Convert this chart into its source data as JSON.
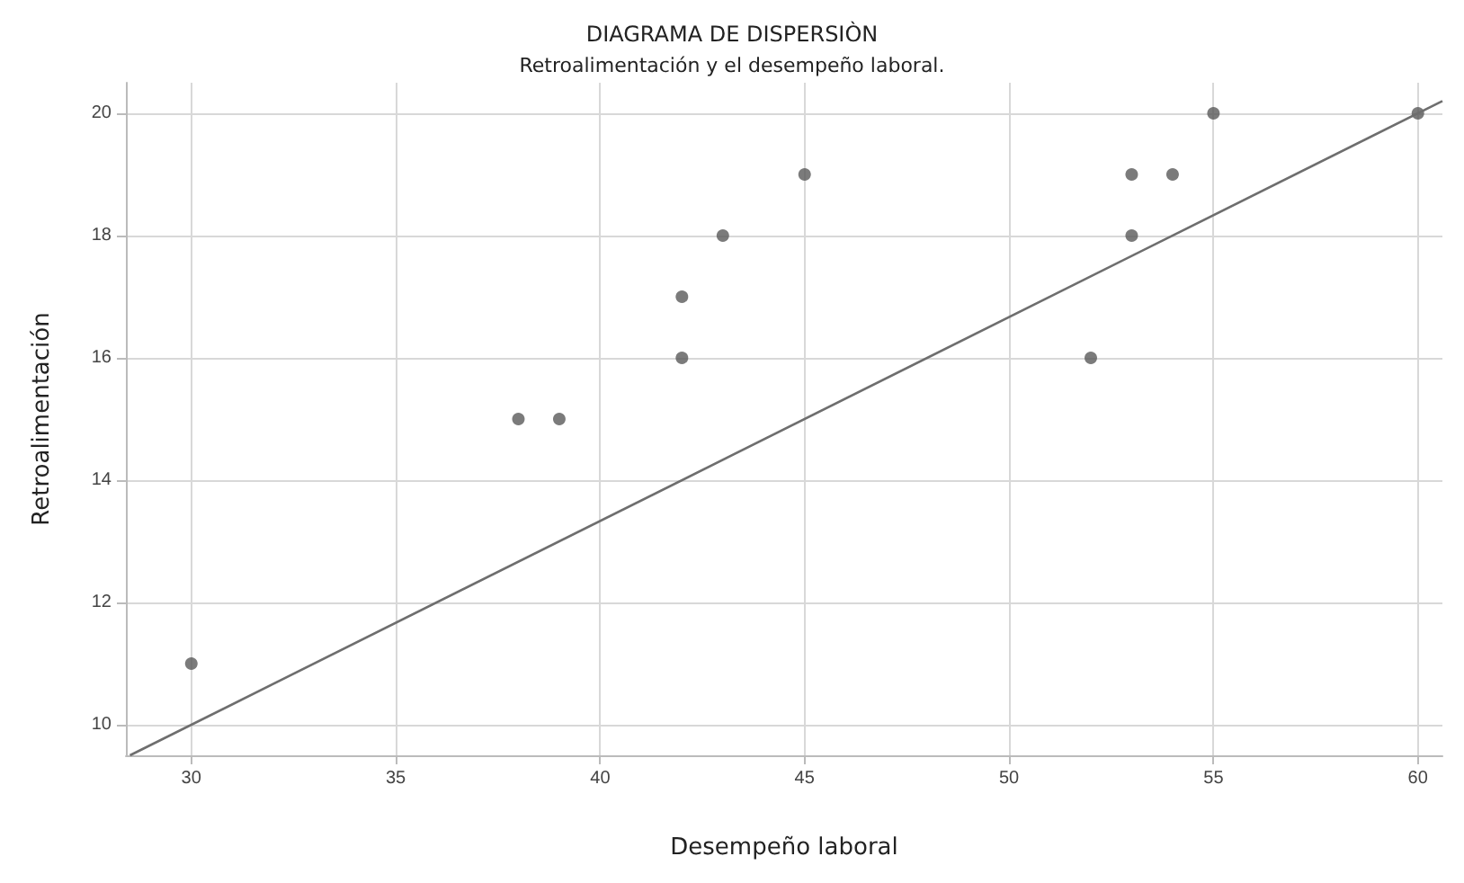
{
  "chart_data": {
    "type": "scatter",
    "title": "DIAGRAMA DE DISPERSIÒN",
    "subtitle": "Retroalimentación y el desempeño laboral.",
    "xlabel": "Desempeño laboral",
    "ylabel": "Retroalimentación",
    "series": [
      {
        "color": "#5a5a5a",
        "x": [
          30,
          38,
          39,
          42,
          42,
          43,
          45,
          52,
          53,
          53,
          54,
          55,
          60
        ],
        "values": [
          11,
          15,
          15,
          17,
          16,
          18,
          19,
          16,
          19,
          18,
          19,
          20,
          20
        ]
      },
      {
        "type": "line",
        "color": "#6e6e6e",
        "x": [
          28.5,
          60.6
        ],
        "values": [
          9.5,
          20.2
        ],
        "marker": "none"
      }
    ],
    "xlim": [
      28.4,
      60.6
    ],
    "ylim": [
      9.5,
      20.5
    ],
    "xticks": [
      30,
      35,
      40,
      45,
      50,
      55,
      60
    ],
    "yticks": [
      10,
      12,
      14,
      16,
      18,
      20
    ],
    "grid": true,
    "marker": "circle"
  }
}
